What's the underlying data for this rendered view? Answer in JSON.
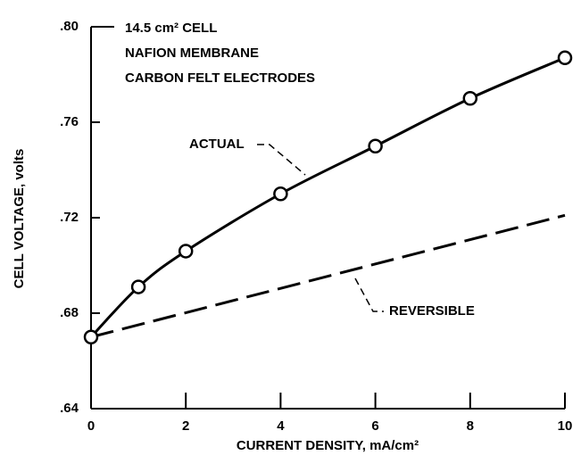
{
  "chart_data": {
    "type": "line",
    "xlabel": "CURRENT DENSITY, mA/cm²",
    "ylabel": "CELL VOLTAGE, volts",
    "annotations": [
      "14.5 cm² CELL",
      "NAFION MEMBRANE",
      "CARBON FELT ELECTRODES"
    ],
    "series": [
      {
        "name": "ACTUAL",
        "color": "#000000",
        "style": "solid",
        "markers": true,
        "x": [
          0,
          1,
          2,
          4,
          6,
          8,
          10
        ],
        "values": [
          0.67,
          0.691,
          0.706,
          0.73,
          0.75,
          0.77,
          0.787
        ]
      },
      {
        "name": "REVERSIBLE",
        "color": "#000000",
        "style": "dashed",
        "markers": false,
        "x": [
          0,
          10
        ],
        "values": [
          0.67,
          0.721
        ]
      }
    ],
    "xlim": [
      0,
      10
    ],
    "xticks": [
      0,
      2,
      4,
      6,
      8,
      10
    ],
    "ylim": [
      0.64,
      0.8
    ],
    "yticks": [
      {
        "value": 0.64,
        "label": ".64"
      },
      {
        "value": 0.68,
        "label": ".68"
      },
      {
        "value": 0.72,
        "label": ".72"
      },
      {
        "value": 0.76,
        "label": ".76"
      },
      {
        "value": 0.8,
        "label": ".80"
      }
    ]
  }
}
